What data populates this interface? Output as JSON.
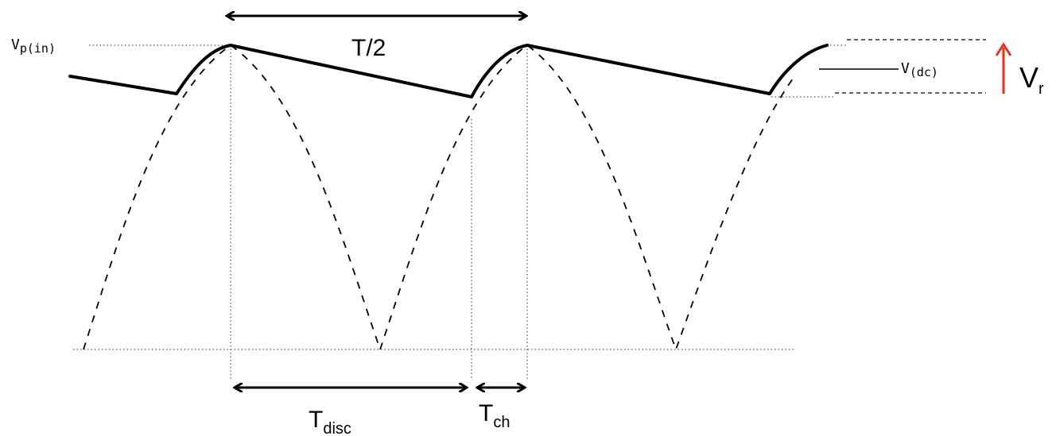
{
  "labels": {
    "vp_in_main": "V",
    "vp_in_sub": "p(in)",
    "v_dc_main": "V",
    "v_dc_sub": "(dc)",
    "half_period": "T/2",
    "t_disc_main": "T",
    "t_disc_sub": "disc",
    "t_ch_main": "T",
    "t_ch_sub": "ch",
    "vr_main": "V",
    "vr_sub": "r"
  },
  "colors": {
    "ripple_arrow": "#e8321c",
    "waveform": "#000000"
  }
}
